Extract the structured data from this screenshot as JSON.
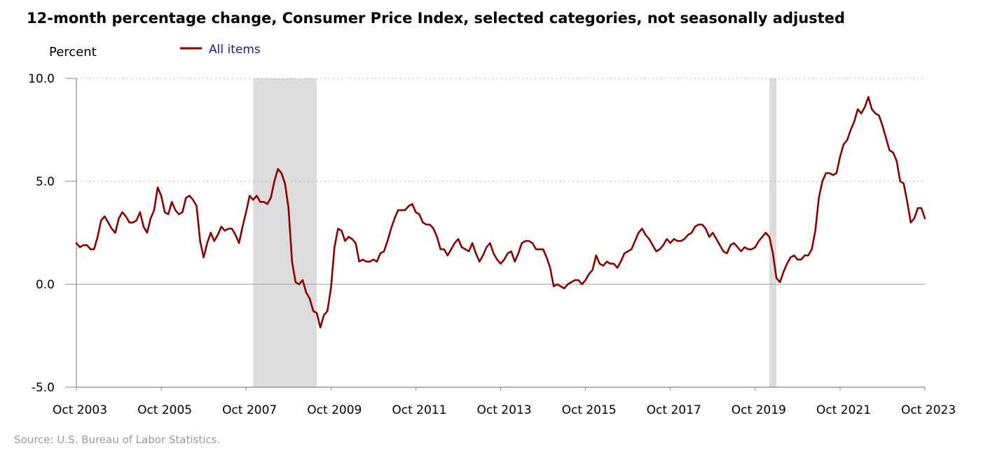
{
  "title": "12-month percentage change, Consumer Price Index, selected categories, not seasonally adjusted",
  "source": "Source: U.S. Bureau of Labor Statistics.",
  "chart_data": {
    "type": "line",
    "ylabel": "Percent",
    "xlabel": "",
    "ylim": [
      -5,
      10
    ],
    "yticks": [
      -5.0,
      0.0,
      5.0,
      10.0
    ],
    "ytick_labels": [
      "-5.0",
      "0.0",
      "5.0",
      "10.0"
    ],
    "x_start": "2003-10",
    "x_end": "2023-10",
    "xticks": [
      "2003-10",
      "2005-10",
      "2007-10",
      "2009-10",
      "2011-10",
      "2013-10",
      "2015-10",
      "2017-10",
      "2019-10",
      "2021-10",
      "2023-10"
    ],
    "xtick_labels": [
      "Oct 2003",
      "Oct 2005",
      "Oct 2007",
      "Oct 2009",
      "Oct 2011",
      "Oct 2013",
      "Oct 2015",
      "Oct 2017",
      "Oct 2019",
      "Oct 2021",
      "Oct 2023"
    ],
    "grid": "horizontal dotted",
    "legend_position": "top-left",
    "recessions": [
      {
        "start": "2007-12",
        "end": "2009-06"
      },
      {
        "start": "2020-02",
        "end": "2020-04"
      }
    ],
    "colors": {
      "series": "#8b0000",
      "recession": "#dcdcdc",
      "grid": "#b0b0b0",
      "legend_text": "#1a1a8c"
    },
    "series": [
      {
        "name": "All items",
        "start": "2003-10",
        "values": [
          2.0,
          1.8,
          1.9,
          1.9,
          1.7,
          1.7,
          2.3,
          3.1,
          3.3,
          3.0,
          2.7,
          2.5,
          3.2,
          3.5,
          3.3,
          3.0,
          3.0,
          3.1,
          3.5,
          2.8,
          2.5,
          3.2,
          3.6,
          4.7,
          4.3,
          3.5,
          3.4,
          4.0,
          3.6,
          3.4,
          3.5,
          4.2,
          4.3,
          4.1,
          3.8,
          2.1,
          1.3,
          2.0,
          2.5,
          2.1,
          2.4,
          2.8,
          2.6,
          2.7,
          2.7,
          2.4,
          2.0,
          2.8,
          3.5,
          4.3,
          4.1,
          4.3,
          4.0,
          4.0,
          3.9,
          4.2,
          5.0,
          5.6,
          5.4,
          4.9,
          3.7,
          1.1,
          0.1,
          0.0,
          0.2,
          -0.4,
          -0.7,
          -1.3,
          -1.4,
          -2.1,
          -1.5,
          -1.3,
          -0.2,
          1.8,
          2.7,
          2.6,
          2.1,
          2.3,
          2.2,
          2.0,
          1.1,
          1.2,
          1.1,
          1.1,
          1.2,
          1.1,
          1.5,
          1.6,
          2.1,
          2.7,
          3.2,
          3.6,
          3.6,
          3.6,
          3.8,
          3.9,
          3.5,
          3.4,
          3.0,
          2.9,
          2.9,
          2.7,
          2.3,
          1.7,
          1.7,
          1.4,
          1.7,
          2.0,
          2.2,
          1.8,
          1.7,
          1.6,
          2.0,
          1.5,
          1.1,
          1.4,
          1.8,
          2.0,
          1.5,
          1.2,
          1.0,
          1.2,
          1.5,
          1.6,
          1.1,
          1.5,
          2.0,
          2.1,
          2.1,
          2.0,
          1.7,
          1.7,
          1.7,
          1.3,
          0.8,
          -0.1,
          0.0,
          -0.1,
          -0.2,
          0.0,
          0.1,
          0.2,
          0.2,
          0.0,
          0.2,
          0.5,
          0.7,
          1.4,
          1.0,
          0.9,
          1.1,
          1.0,
          1.0,
          0.8,
          1.1,
          1.5,
          1.6,
          1.7,
          2.1,
          2.5,
          2.7,
          2.4,
          2.2,
          1.9,
          1.6,
          1.7,
          1.9,
          2.2,
          2.0,
          2.2,
          2.1,
          2.1,
          2.2,
          2.4,
          2.5,
          2.8,
          2.9,
          2.9,
          2.7,
          2.3,
          2.5,
          2.2,
          1.9,
          1.6,
          1.5,
          1.9,
          2.0,
          1.8,
          1.6,
          1.8,
          1.7,
          1.7,
          1.8,
          2.1,
          2.3,
          2.5,
          2.3,
          1.5,
          0.3,
          0.1,
          0.6,
          1.0,
          1.3,
          1.4,
          1.2,
          1.2,
          1.4,
          1.4,
          1.7,
          2.6,
          4.2,
          5.0,
          5.4,
          5.4,
          5.3,
          5.4,
          6.2,
          6.8,
          7.0,
          7.5,
          7.9,
          8.5,
          8.3,
          8.6,
          9.1,
          8.5,
          8.3,
          8.2,
          7.7,
          7.1,
          6.5,
          6.4,
          6.0,
          5.0,
          4.9,
          4.0,
          3.0,
          3.2,
          3.7,
          3.7,
          3.2
        ]
      }
    ]
  }
}
